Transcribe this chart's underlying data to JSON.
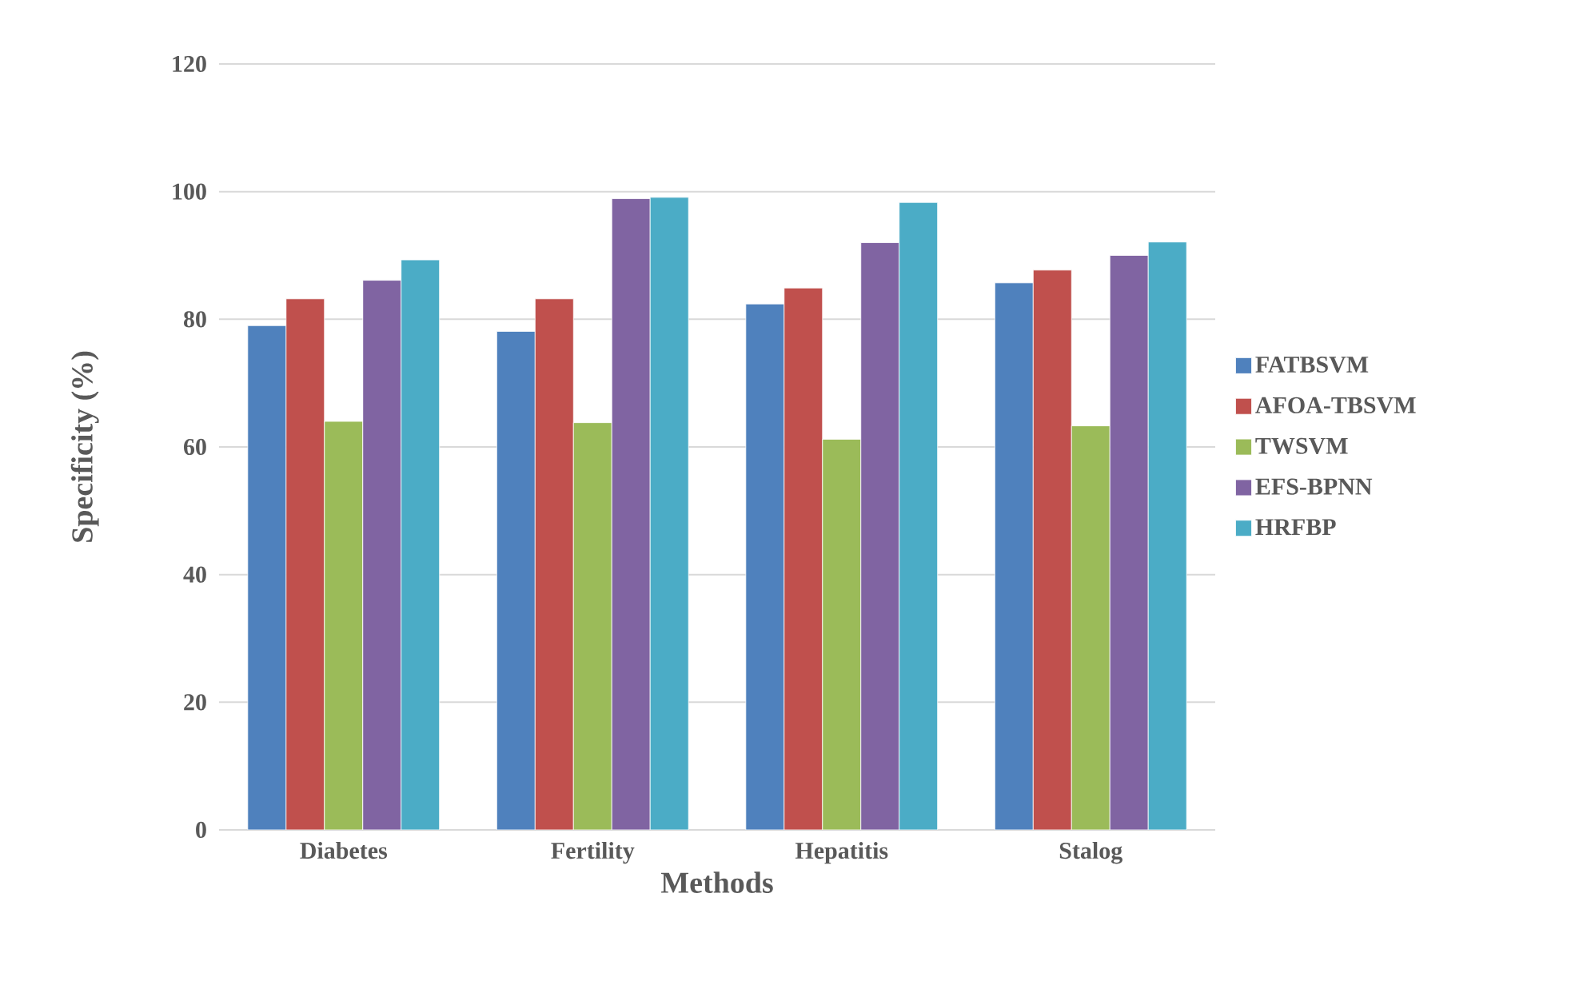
{
  "chart_data": {
    "type": "bar",
    "xlabel": "Methods",
    "ylabel": "Specificity (%)",
    "categories": [
      "Diabetes",
      "Fertility",
      "Hepatitis",
      "Stalog"
    ],
    "series": [
      {
        "name": "FATBSVM",
        "color": "#4f81bd",
        "values": [
          79,
          78.1,
          82.4,
          85.7
        ]
      },
      {
        "name": "AFOA-TBSVM",
        "color": "#c0504d",
        "values": [
          83.2,
          83.2,
          84.9,
          87.7
        ]
      },
      {
        "name": "TWSVM",
        "color": "#9bbb59",
        "values": [
          64,
          63.8,
          61.2,
          63.3
        ]
      },
      {
        "name": "EFS-BPNN",
        "color": "#8064a2",
        "values": [
          86.1,
          98.9,
          92,
          90
        ]
      },
      {
        "name": "HRFBP",
        "color": "#4bacc6",
        "values": [
          89.3,
          99.1,
          98.3,
          92.1
        ]
      }
    ],
    "ylim": [
      0,
      120
    ],
    "yticks": [
      0,
      20,
      40,
      60,
      80,
      100,
      120
    ],
    "grid": "y",
    "legend": "right"
  }
}
